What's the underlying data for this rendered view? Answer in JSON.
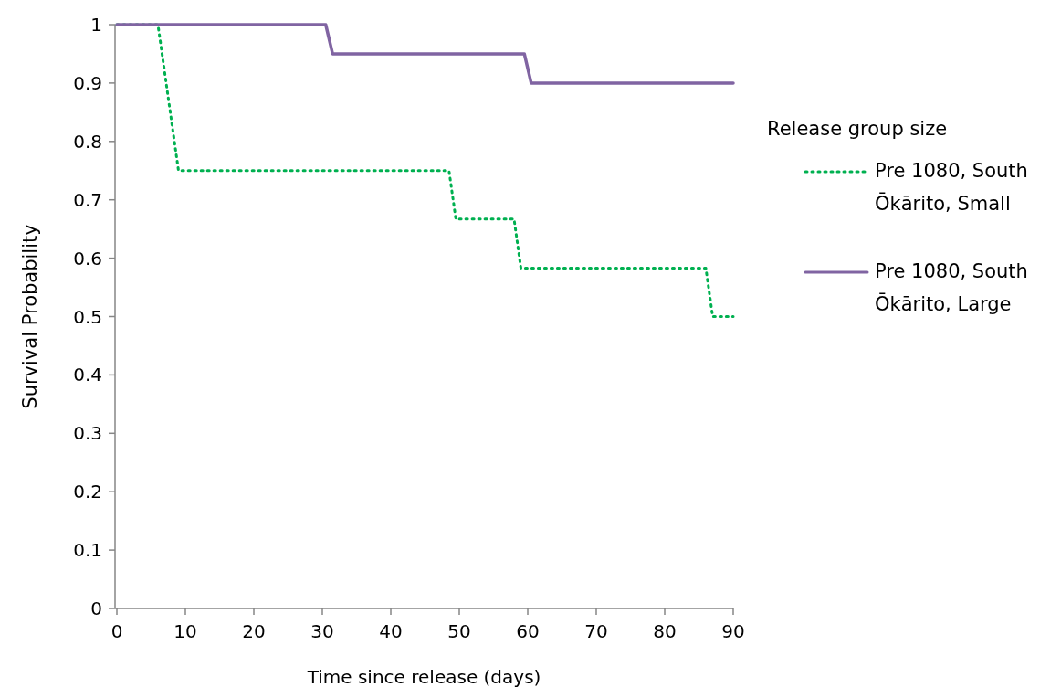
{
  "chart_data": {
    "type": "line",
    "xlabel": "Time since release (days)",
    "ylabel": "Survival Probability",
    "legend_title": "Release group size",
    "xlim": [
      0,
      90
    ],
    "xticks": [
      0,
      10,
      20,
      30,
      40,
      50,
      60,
      70,
      80,
      90
    ],
    "ylim": [
      0,
      1
    ],
    "yticks": [
      0,
      0.1,
      0.2,
      0.3,
      0.4,
      0.5,
      0.6,
      0.7,
      0.8,
      0.9,
      1
    ],
    "grid": false,
    "legend": "right",
    "marker": "none",
    "series": [
      {
        "name": "Pre 1080, South Ōkārito, Small",
        "color": "#00b050",
        "line_style": "dotted",
        "x": [
          0,
          6,
          9,
          48.5,
          49.5,
          58,
          59,
          86,
          87,
          90
        ],
        "values": [
          1,
          1,
          0.75,
          0.75,
          0.667,
          0.667,
          0.583,
          0.583,
          0.5,
          0.5
        ]
      },
      {
        "name": "Pre 1080, South Ōkārito, Large",
        "color": "#8064a2",
        "line_style": "solid",
        "x": [
          0,
          30.5,
          31.5,
          59.5,
          60.5,
          90
        ],
        "values": [
          1,
          1,
          0.95,
          0.95,
          0.9,
          0.9
        ]
      }
    ]
  }
}
